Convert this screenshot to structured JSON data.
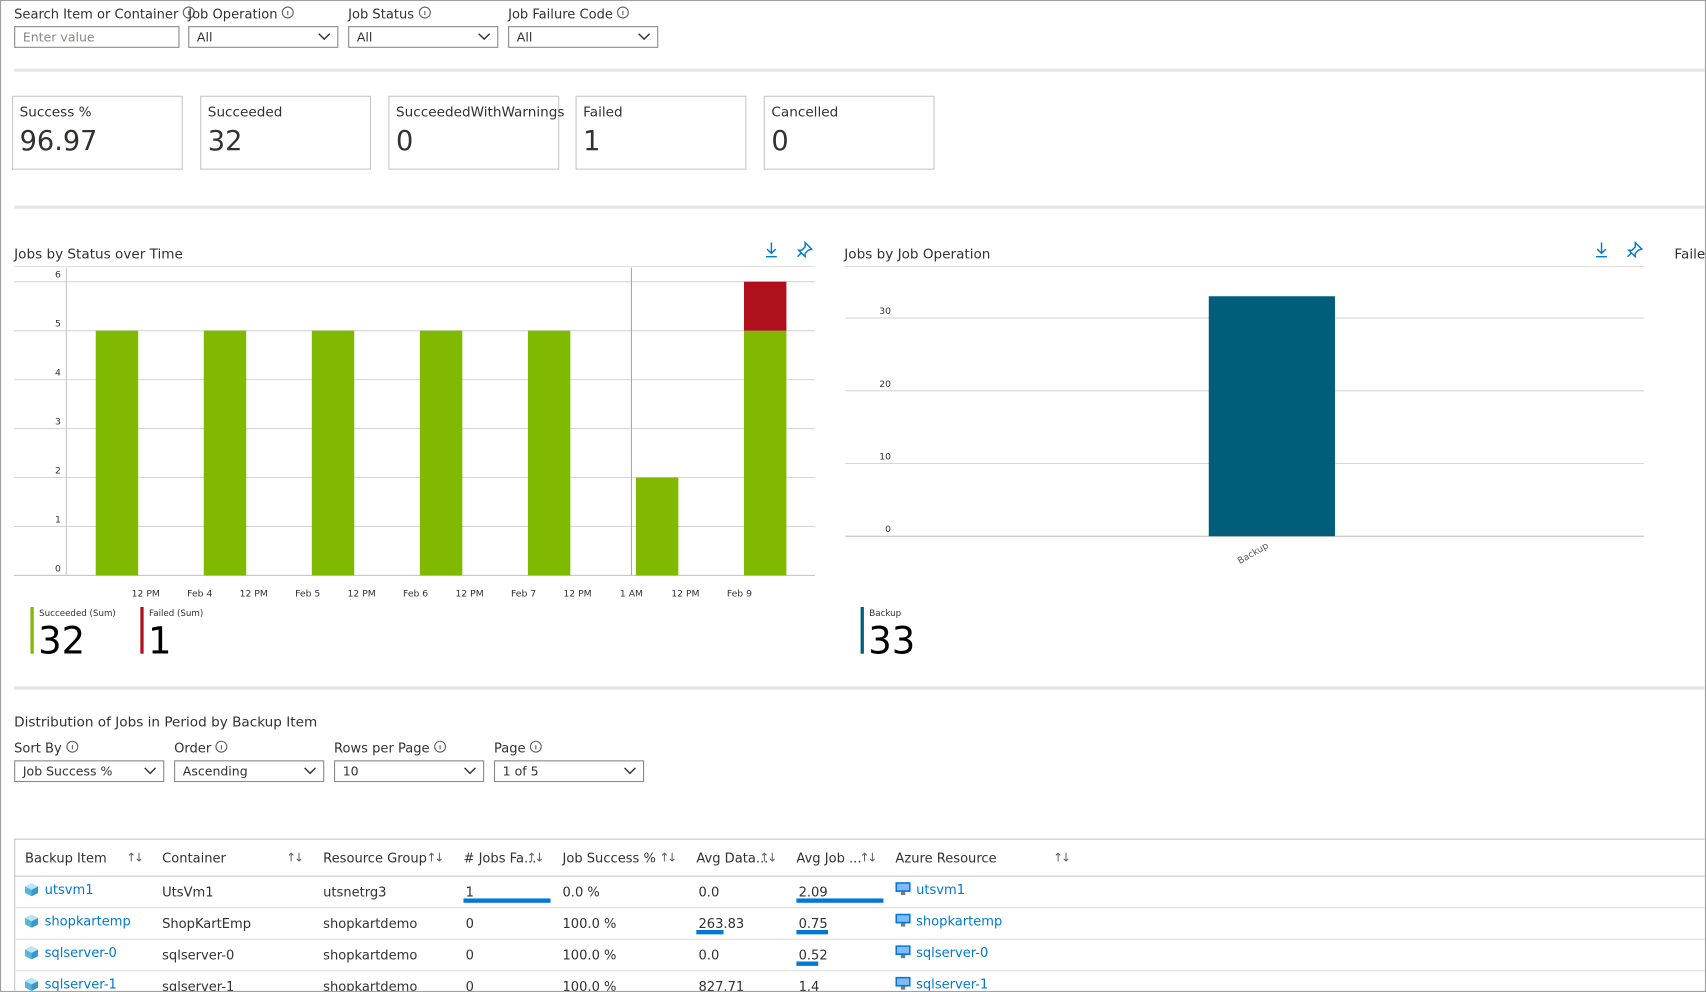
{
  "filters": [
    {
      "label": "Search Item or Container",
      "placeholder": "Enter value"
    },
    {
      "label": "Job Operation",
      "value": "All"
    },
    {
      "label": "Job Status",
      "value": "All"
    },
    {
      "label": "Job Failure Code",
      "value": "All"
    }
  ],
  "kpis": [
    {
      "label": "Success %",
      "value": "96.97"
    },
    {
      "label": "Succeeded",
      "value": "32"
    },
    {
      "label": "SucceededWithWarnings",
      "value": "0"
    },
    {
      "label": "Failed",
      "value": "1"
    },
    {
      "label": "Cancelled",
      "value": "0"
    }
  ],
  "chart_data": [
    {
      "type": "bar",
      "stacked": true,
      "title": "Jobs by Status over Time",
      "categories": [
        null,
        null,
        null,
        null,
        null,
        null,
        null
      ],
      "xtick_labels": [
        "12 PM",
        "Feb 4",
        "12 PM",
        "Feb 5",
        "12 PM",
        "Feb 6",
        "12 PM",
        "Feb 7",
        "12 PM",
        "1 AM",
        "12 PM",
        "Feb 9"
      ],
      "series": [
        {
          "name": "Succeeded (Sum)",
          "color": "#7fba00",
          "values": [
            5,
            5,
            5,
            5,
            5,
            2,
            5
          ],
          "total": 32
        },
        {
          "name": "Failed (Sum)",
          "color": "#b0101d",
          "values": [
            0,
            0,
            0,
            0,
            0,
            0,
            1
          ],
          "total": 1
        }
      ],
      "ylim": [
        0,
        6
      ],
      "yticks": [
        0,
        1,
        2,
        3,
        4,
        5,
        6
      ],
      "grid": true
    },
    {
      "type": "bar",
      "stacked": false,
      "title": "Jobs by Job Operation",
      "categories": [
        "Backup"
      ],
      "series": [
        {
          "name": "Backup",
          "color": "#005e7a",
          "values": [
            33
          ],
          "total": 33
        }
      ],
      "ylim": [
        0,
        35
      ],
      "yticks": [
        0,
        10,
        20,
        30
      ],
      "grid": true
    }
  ],
  "partial_title": "Faile",
  "distribution": {
    "title": "Distribution of Jobs in Period by Backup Item",
    "controls": [
      {
        "label": "Sort By",
        "value": "Job Success %"
      },
      {
        "label": "Order",
        "value": "Ascending"
      },
      {
        "label": "Rows per Page",
        "value": "10"
      },
      {
        "label": "Page",
        "value": "1 of 5"
      }
    ]
  },
  "table": {
    "headers": [
      "Backup Item",
      "Container",
      "Resource Group",
      "# Jobs Fa...",
      "Job Success %",
      "Avg Data...",
      "Avg Job ...",
      "Azure Resource"
    ],
    "rows": [
      [
        "utsvm1",
        "UtsVm1",
        "utsnetrg3",
        "1",
        "0.0 %",
        "0.0",
        "2.09",
        "utsvm1"
      ],
      [
        "shopkartemp",
        "ShopKartEmp",
        "shopkartdemo",
        "0",
        "100.0 %",
        "263.83",
        "0.75",
        "shopkartemp"
      ],
      [
        "sqlserver-0",
        "sqlserver-0",
        "shopkartdemo",
        "0",
        "100.0 %",
        "0.0",
        "0.52",
        "sqlserver-0"
      ],
      [
        "sqlserver-1",
        "sqlserver-1",
        "shopkartdemo",
        "0",
        "100.0 %",
        "827.71",
        "1.4",
        "sqlserver-1"
      ]
    ]
  }
}
